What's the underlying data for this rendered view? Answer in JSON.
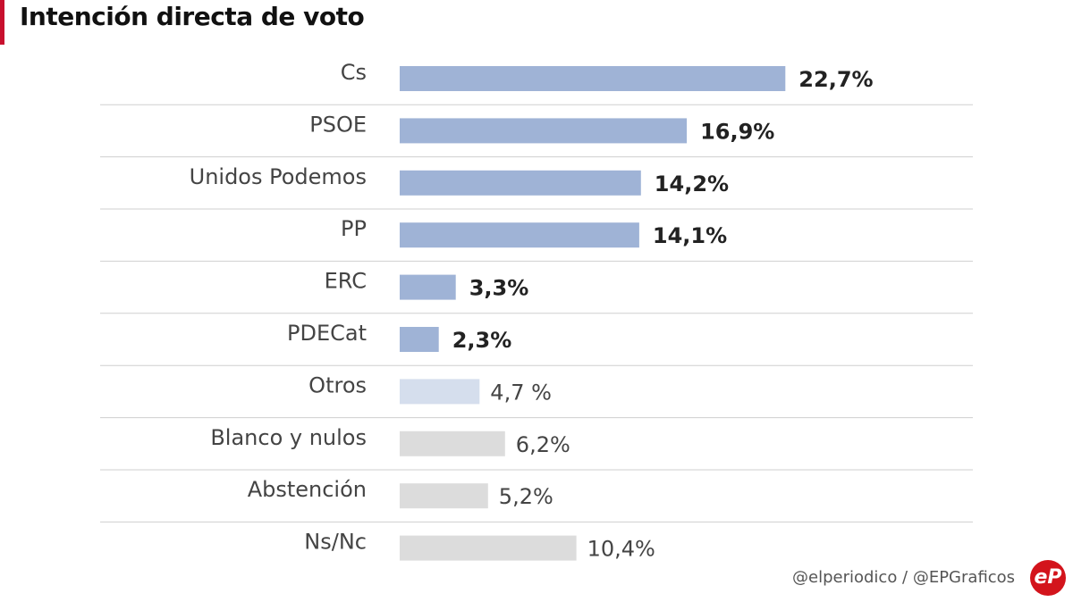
{
  "title": "Intención directa de voto",
  "credit": "@elperiodico / @EPGraficos",
  "logo_text": "eP",
  "colors": {
    "accent": "#c8102e",
    "party": "#9fb3d6",
    "otros": "#d5deed",
    "other": "#dcdcdc"
  },
  "chart_data": {
    "type": "bar",
    "orientation": "horizontal",
    "title": "Intención directa de voto",
    "unit": "%",
    "categories": [
      "Cs",
      "PSOE",
      "Unidos Podemos",
      "PP",
      "ERC",
      "PDECat",
      "Otros",
      "Blanco y nulos",
      "Abstención",
      "Ns/Nc"
    ],
    "values": [
      22.7,
      16.9,
      14.2,
      14.1,
      3.3,
      2.3,
      4.7,
      6.2,
      5.2,
      10.4
    ],
    "labels": [
      "22,7%",
      "16,9%",
      "14,2%",
      "14,1%",
      "3,3%",
      "2,3%",
      "4,7 %",
      "6,2%",
      "5,2%",
      "10,4%"
    ],
    "bold_labels": [
      true,
      true,
      true,
      true,
      true,
      true,
      false,
      false,
      false,
      false
    ],
    "bar_colors": [
      "#9fb3d6",
      "#9fb3d6",
      "#9fb3d6",
      "#9fb3d6",
      "#9fb3d6",
      "#9fb3d6",
      "#d5deed",
      "#dcdcdc",
      "#dcdcdc",
      "#dcdcdc"
    ],
    "grid": false
  }
}
